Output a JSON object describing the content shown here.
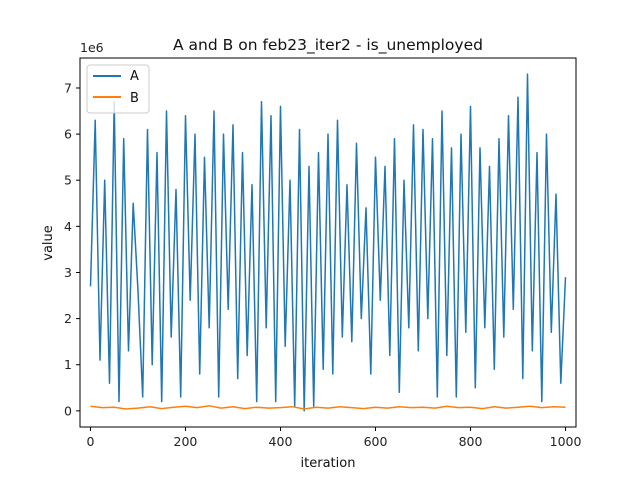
{
  "chart_data": {
    "type": "line",
    "title": "A and B on feb23_iter2 - is_unemployed",
    "xlabel": "iteration",
    "ylabel": "value",
    "y_offset_label": "1e6",
    "xlim": [
      -22,
      1022
    ],
    "ylim": [
      -350000,
      7650000
    ],
    "x_ticks": [
      0,
      200,
      400,
      600,
      800,
      1000
    ],
    "y_ticks": [
      0,
      1000000,
      2000000,
      3000000,
      4000000,
      5000000,
      6000000,
      7000000
    ],
    "y_tick_labels": [
      "0",
      "1",
      "2",
      "3",
      "4",
      "5",
      "6",
      "7"
    ],
    "legend_position": "upper-left",
    "grid": false,
    "colors": {
      "A": "#1f77b4",
      "B": "#ff7f0e"
    },
    "series": [
      {
        "name": "A",
        "x": [
          0,
          10,
          20,
          30,
          40,
          50,
          60,
          70,
          80,
          90,
          100,
          110,
          120,
          130,
          140,
          150,
          160,
          170,
          180,
          190,
          200,
          210,
          220,
          230,
          240,
          250,
          260,
          270,
          280,
          290,
          300,
          310,
          320,
          330,
          340,
          350,
          360,
          370,
          380,
          390,
          400,
          410,
          420,
          430,
          440,
          450,
          460,
          470,
          480,
          490,
          500,
          510,
          520,
          530,
          540,
          550,
          560,
          570,
          580,
          590,
          600,
          610,
          620,
          630,
          640,
          650,
          660,
          670,
          680,
          690,
          700,
          710,
          720,
          730,
          740,
          750,
          760,
          770,
          780,
          790,
          800,
          810,
          820,
          830,
          840,
          850,
          860,
          870,
          880,
          890,
          900,
          910,
          920,
          930,
          940,
          950,
          960,
          970,
          980,
          990,
          1000
        ],
        "values": [
          2700000,
          6300000,
          1100000,
          5000000,
          600000,
          6700000,
          200000,
          5900000,
          1300000,
          4500000,
          2600000,
          300000,
          6100000,
          1000000,
          5600000,
          200000,
          6500000,
          1600000,
          4800000,
          300000,
          6400000,
          2400000,
          6000000,
          800000,
          5500000,
          1800000,
          6500000,
          300000,
          6000000,
          2200000,
          6200000,
          700000,
          5600000,
          1200000,
          4900000,
          200000,
          6700000,
          1800000,
          6400000,
          200000,
          6600000,
          1400000,
          5000000,
          100000,
          6100000,
          0,
          5300000,
          100000,
          5600000,
          900000,
          6000000,
          800000,
          6300000,
          1600000,
          4900000,
          1500000,
          5800000,
          2000000,
          4400000,
          800000,
          5500000,
          2400000,
          5300000,
          1200000,
          5900000,
          400000,
          5000000,
          1800000,
          6200000,
          1300000,
          6100000,
          2000000,
          5900000,
          300000,
          6500000,
          1200000,
          5700000,
          300000,
          6000000,
          1700000,
          6600000,
          500000,
          5700000,
          1800000,
          5300000,
          900000,
          5900000,
          1600000,
          6400000,
          2200000,
          6800000,
          700000,
          7300000,
          1300000,
          5600000,
          200000,
          6000000,
          1700000,
          4700000,
          600000,
          2900000
        ]
      },
      {
        "name": "B",
        "x": [
          0,
          25,
          50,
          75,
          100,
          125,
          150,
          175,
          200,
          225,
          250,
          275,
          300,
          325,
          350,
          375,
          400,
          425,
          450,
          475,
          500,
          525,
          550,
          575,
          600,
          625,
          650,
          675,
          700,
          725,
          750,
          775,
          800,
          825,
          850,
          875,
          900,
          925,
          950,
          975,
          1000
        ],
        "values": [
          100000,
          70000,
          80000,
          40000,
          60000,
          90000,
          50000,
          80000,
          100000,
          70000,
          110000,
          60000,
          90000,
          50000,
          80000,
          60000,
          70000,
          90000,
          40000,
          80000,
          60000,
          90000,
          70000,
          50000,
          80000,
          60000,
          90000,
          70000,
          80000,
          60000,
          100000,
          70000,
          80000,
          50000,
          90000,
          60000,
          80000,
          100000,
          70000,
          90000,
          80000
        ]
      }
    ]
  }
}
